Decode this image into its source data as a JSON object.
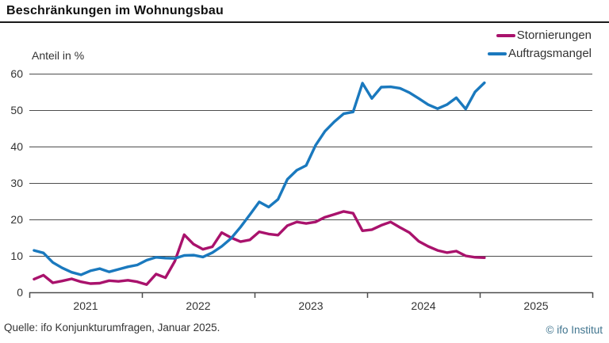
{
  "title": "Beschränkungen im Wohnungsbau",
  "axis_label": "Anteil in %",
  "source": "Quelle: ifo Konjunkturumfragen, Januar 2025.",
  "copyright": "© ifo Institut",
  "colors": {
    "stornierungen": "#a9126c",
    "auftragsmangel": "#1a79be",
    "grid": "#4d4d4d",
    "text": "#333333",
    "copyright": "#41758f"
  },
  "chart_data": {
    "type": "line",
    "title": "Beschränkungen im Wohnungsbau",
    "ylabel": "Anteil in %",
    "ylim": [
      0,
      60
    ],
    "yticks": [
      0,
      10,
      20,
      30,
      40,
      50,
      60
    ],
    "grid": true,
    "legend_position": "top-right",
    "xticklabels": [
      "2021",
      "2022",
      "2023",
      "2024",
      "2025"
    ],
    "x_unit": "month",
    "x": [
      "2021-01",
      "2021-02",
      "2021-03",
      "2021-04",
      "2021-05",
      "2021-06",
      "2021-07",
      "2021-08",
      "2021-09",
      "2021-10",
      "2021-11",
      "2021-12",
      "2022-01",
      "2022-02",
      "2022-03",
      "2022-04",
      "2022-05",
      "2022-06",
      "2022-07",
      "2022-08",
      "2022-09",
      "2022-10",
      "2022-11",
      "2022-12",
      "2023-01",
      "2023-02",
      "2023-03",
      "2023-04",
      "2023-05",
      "2023-06",
      "2023-07",
      "2023-08",
      "2023-09",
      "2023-10",
      "2023-11",
      "2023-12",
      "2024-01",
      "2024-02",
      "2024-03",
      "2024-04",
      "2024-05",
      "2024-06",
      "2024-07",
      "2024-08",
      "2024-09",
      "2024-10",
      "2024-11",
      "2024-12",
      "2025-01"
    ],
    "series": [
      {
        "name": "Stornierungen",
        "color": "#a9126c",
        "values": [
          3.6,
          4.7,
          2.6,
          3.1,
          3.7,
          2.9,
          2.4,
          2.5,
          3.2,
          3.0,
          3.3,
          2.9,
          2.1,
          5.0,
          4.0,
          8.5,
          15.8,
          13.2,
          11.8,
          12.5,
          16.4,
          15.0,
          13.9,
          14.4,
          16.6,
          16.0,
          15.7,
          18.3,
          19.3,
          18.9,
          19.3,
          20.6,
          21.4,
          22.2,
          21.7,
          16.9,
          17.2,
          18.4,
          19.3,
          17.8,
          16.4,
          14.0,
          12.6,
          11.5,
          10.9,
          11.3,
          10.0,
          9.6,
          9.5
        ]
      },
      {
        "name": "Auftragsmangel",
        "color": "#1a79be",
        "values": [
          11.5,
          10.8,
          8.2,
          6.7,
          5.5,
          4.8,
          5.9,
          6.5,
          5.6,
          6.3,
          7.0,
          7.5,
          8.8,
          9.6,
          9.4,
          9.3,
          10.1,
          10.2,
          9.7,
          10.9,
          12.6,
          14.8,
          17.9,
          21.3,
          24.8,
          23.4,
          25.5,
          31.0,
          33.5,
          34.8,
          40.3,
          44.2,
          46.8,
          49.0,
          49.5,
          57.4,
          53.2,
          56.3,
          56.4,
          56.0,
          54.8,
          53.2,
          51.5,
          50.4,
          51.5,
          53.4,
          50.3,
          55.0,
          57.5
        ]
      }
    ]
  }
}
